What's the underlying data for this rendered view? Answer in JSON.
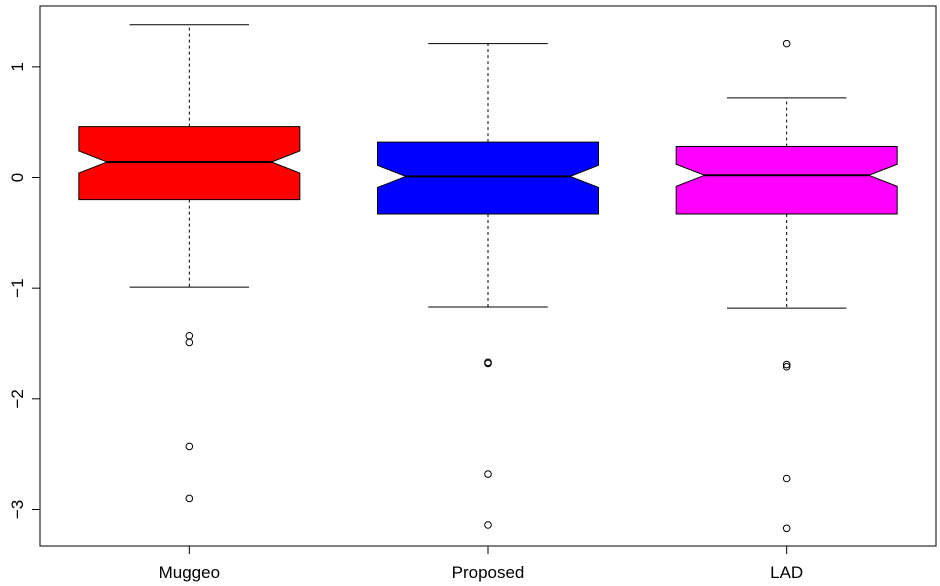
{
  "chart_data": {
    "type": "boxplot",
    "notched": true,
    "categories": [
      "Muggeo",
      "Proposed",
      "LAD"
    ],
    "y_ticks": [
      "−3",
      "−2",
      "−1",
      "0",
      "1"
    ],
    "y_tick_values": [
      -3,
      -2,
      -1,
      0,
      1
    ],
    "ylim": [
      -3.33,
      1.55
    ],
    "grid": false,
    "boxes": [
      {
        "name": "Muggeo",
        "color": "#ff0000",
        "whisker_low": -0.99,
        "q1": -0.2,
        "median": 0.14,
        "q3": 0.46,
        "whisker_high": 1.38,
        "notch_low": 0.04,
        "notch_high": 0.24,
        "outliers": [
          -1.43,
          -1.49,
          -2.43,
          -2.9
        ]
      },
      {
        "name": "Proposed",
        "color": "#0000ff",
        "whisker_low": -1.17,
        "q1": -0.33,
        "median": 0.01,
        "q3": 0.32,
        "whisker_high": 1.21,
        "notch_low": -0.09,
        "notch_high": 0.11,
        "outliers": [
          -1.67,
          -1.68,
          -2.68,
          -3.14
        ]
      },
      {
        "name": "LAD",
        "color": "#ff00ff",
        "whisker_low": -1.18,
        "q1": -0.33,
        "median": 0.02,
        "q3": 0.28,
        "whisker_high": 0.72,
        "notch_low": -0.08,
        "notch_high": 0.12,
        "outliers": [
          1.21,
          -1.69,
          -1.71,
          -2.72,
          -3.17
        ]
      }
    ]
  }
}
